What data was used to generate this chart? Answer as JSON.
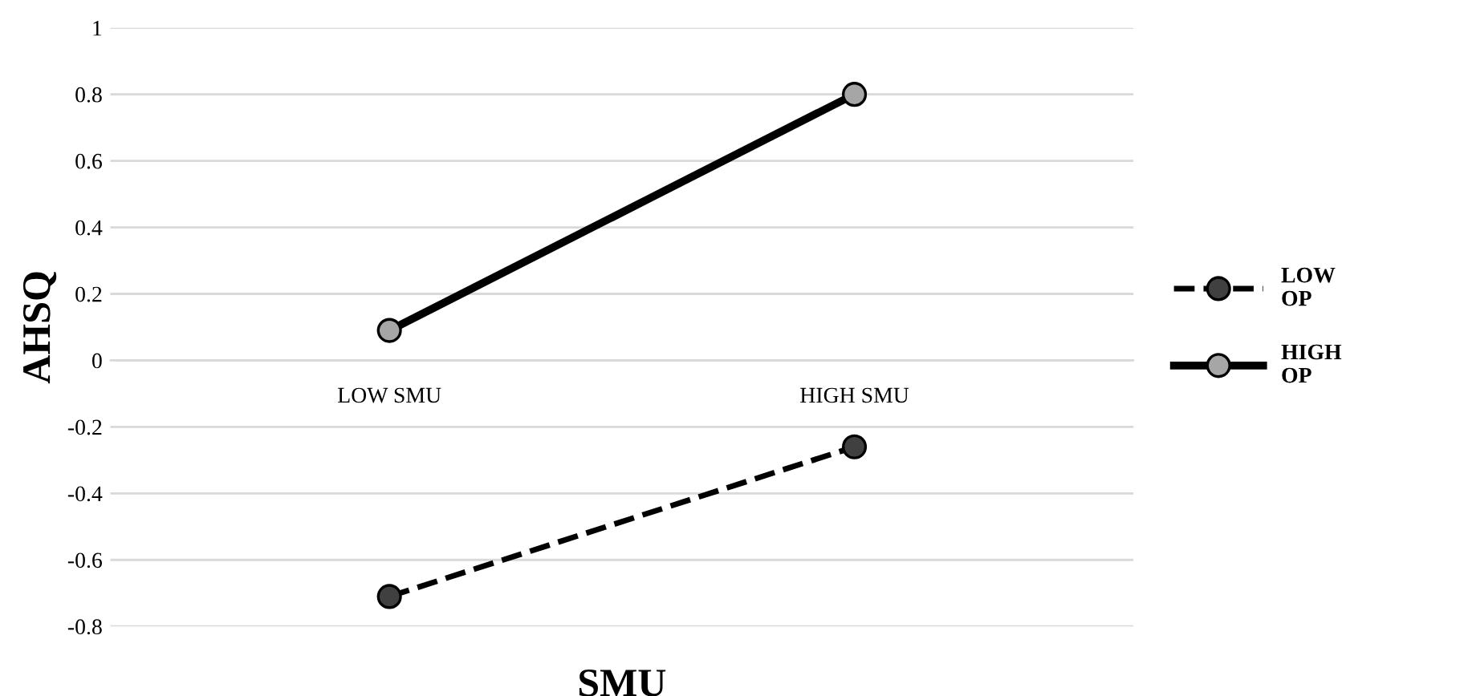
{
  "chart_data": {
    "type": "line",
    "xlabel": "SMU",
    "ylabel": "AHSQ",
    "categories": [
      "LOW SMU",
      "HIGH SMU"
    ],
    "series": [
      {
        "name": "LOW OP",
        "color": "#000000",
        "values": [
          -0.71,
          -0.26
        ],
        "line_style": "dashed"
      },
      {
        "name": "HIGH OP",
        "color": "#000000",
        "values": [
          0.09,
          0.8
        ],
        "line_style": "solid"
      }
    ],
    "ylim": [
      -0.8,
      1
    ],
    "yticks": [
      -0.8,
      -0.6,
      -0.4,
      -0.2,
      0,
      0.2,
      0.4,
      0.6,
      0.8,
      1
    ],
    "grid": "y",
    "legend": "right",
    "marker": "circle"
  }
}
